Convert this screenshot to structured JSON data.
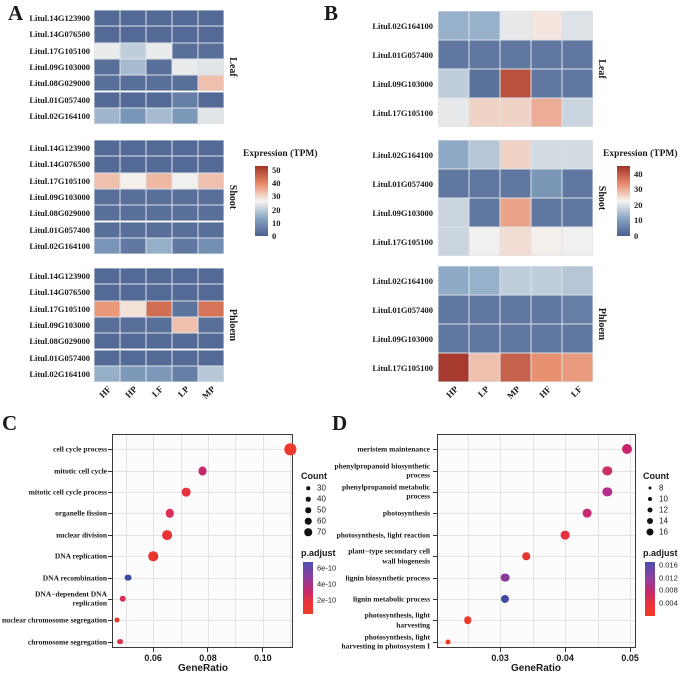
{
  "figure": {
    "background": "#ffffff",
    "heat_palette": [
      "#4a5f8e",
      "#87a5c3",
      "#f6f4f1",
      "#e78a68",
      "#a03229"
    ],
    "padjust_gradient": [
      "#4b4fb0",
      "#8f3f9f",
      "#c22a6c",
      "#e8333c",
      "#ee3a26"
    ]
  },
  "chart_data": [
    {
      "type": "heatmap",
      "panel_label": "A",
      "columns": [
        "HF",
        "HP",
        "LF",
        "LP",
        "MP"
      ],
      "genes": [
        "Litul.14G123900",
        "Litul.14G076500",
        "Litul.17G105100",
        "Litul.09G103000",
        "Litul.08G029000",
        "Litul.01G057400",
        "Litul.02G164100"
      ],
      "blocks": [
        {
          "name": "Leaf",
          "values": [
            [
              2,
              2,
              2,
              2,
              2
            ],
            [
              2,
              2,
              2,
              2,
              2
            ],
            [
              25,
              20,
              25,
              3,
              3
            ],
            [
              3,
              17,
              3,
              25,
              24
            ],
            [
              3,
              3,
              3,
              3,
              33
            ],
            [
              2,
              2,
              2,
              6,
              2
            ],
            [
              16,
              10,
              17,
              11,
              24
            ]
          ]
        },
        {
          "name": "Shoot",
          "values": [
            [
              2,
              2,
              2,
              2,
              2
            ],
            [
              2,
              2,
              2,
              2,
              2
            ],
            [
              33,
              27,
              34,
              26,
              33
            ],
            [
              3,
              3,
              3,
              3,
              3
            ],
            [
              3,
              3,
              3,
              3,
              3
            ],
            [
              3,
              3,
              3,
              3,
              3
            ],
            [
              10,
              5,
              15,
              5,
              9
            ]
          ]
        },
        {
          "name": "Phloem",
          "values": [
            [
              2,
              2,
              2,
              2,
              2
            ],
            [
              2,
              2,
              2,
              2,
              2
            ],
            [
              38,
              29,
              44,
              4,
              43
            ],
            [
              3,
              3,
              3,
              33,
              3
            ],
            [
              2,
              2,
              2,
              2,
              2
            ],
            [
              2,
              2,
              2,
              2,
              2
            ],
            [
              15,
              11,
              11,
              6,
              19
            ]
          ]
        }
      ],
      "scale_max": 53,
      "legend": {
        "title": "Expression (TPM)",
        "ticks": [
          50,
          40,
          30,
          20,
          10,
          0
        ]
      }
    },
    {
      "type": "heatmap",
      "panel_label": "B",
      "columns": [
        "HP",
        "LP",
        "MP",
        "HF",
        "LF"
      ],
      "genes": [
        "Litul.02G164100",
        "Litul.01G057400",
        "Litul.09G103000",
        "Litul.17G105100"
      ],
      "blocks": [
        {
          "name": "Leaf",
          "values": [
            [
              13,
              13,
              21,
              24,
              20
            ],
            [
              4,
              4,
              4,
              4,
              4
            ],
            [
              17,
              3,
              41,
              4,
              4
            ],
            [
              21,
              26,
              26,
              30,
              18
            ]
          ]
        },
        {
          "name": "Shoot",
          "values": [
            [
              12,
              16,
              26,
              19,
              19
            ],
            [
              4,
              4,
              4,
              9,
              4
            ],
            [
              18,
              4,
              31,
              4,
              4
            ],
            [
              18,
              22,
              25,
              23,
              22
            ]
          ]
        },
        {
          "name": "Phloem",
          "values": [
            [
              12,
              13,
              17,
              17,
              16
            ],
            [
              4,
              4,
              4,
              4,
              5
            ],
            [
              4,
              4,
              4,
              4,
              4
            ],
            [
              44,
              28,
              39,
              33,
              32
            ]
          ]
        }
      ],
      "scale_max": 45,
      "legend": {
        "title": "Expression (TPM)",
        "ticks": [
          40,
          30,
          20,
          10,
          0
        ]
      }
    },
    {
      "type": "scatter",
      "panel_label": "C",
      "xlabel": "GeneRatio",
      "x_ticks": [
        0.06,
        0.08,
        0.1
      ],
      "x_domain": [
        0.045,
        0.111
      ],
      "count_domain": [
        30,
        70
      ],
      "count_legend": {
        "title": "Count",
        "items": [
          30,
          40,
          50,
          60,
          70
        ]
      },
      "padjust_legend": {
        "title": "p.adjust",
        "labels": [
          "6e-10",
          "4e-10",
          "2e-10"
        ]
      },
      "points": [
        {
          "term": "cell cycle process",
          "ratio": 0.11,
          "count": 72,
          "color": "#ee3a2d"
        },
        {
          "term": "mitotic cell cycle",
          "ratio": 0.078,
          "count": 56,
          "color": "#c22a6c"
        },
        {
          "term": "mitotic cell cycle process",
          "ratio": 0.072,
          "count": 55,
          "color": "#e73340"
        },
        {
          "term": "organelle fission",
          "ratio": 0.066,
          "count": 53,
          "color": "#d92f56"
        },
        {
          "term": "nuclear division",
          "ratio": 0.065,
          "count": 62,
          "color": "#ea3335"
        },
        {
          "term": "DNA replication",
          "ratio": 0.06,
          "count": 60,
          "color": "#e6342c"
        },
        {
          "term": "DNA recombination",
          "ratio": 0.051,
          "count": 42,
          "color": "#3a4ba0"
        },
        {
          "term": "DNA−dependent DNA replication",
          "ratio": 0.049,
          "count": 40,
          "color": "#d62f56"
        },
        {
          "term": "nuclear chromosome segregation",
          "ratio": 0.047,
          "count": 30,
          "color": "#e6342c"
        },
        {
          "term": "chromosome segregation",
          "ratio": 0.048,
          "count": 35,
          "color": "#d8304c"
        }
      ]
    },
    {
      "type": "scatter",
      "panel_label": "D",
      "xlabel": "GeneRatio",
      "x_ticks": [
        0.03,
        0.04,
        0.05
      ],
      "x_domain": [
        0.0203,
        0.0509
      ],
      "count_domain": [
        8,
        16
      ],
      "count_legend": {
        "title": "Count",
        "items": [
          8,
          10,
          12,
          14,
          16
        ]
      },
      "padjust_legend": {
        "title": "p.adjust",
        "labels": [
          "0.016",
          "0.012",
          "0.008",
          "0.004"
        ]
      },
      "points": [
        {
          "term": "meristem maintenance",
          "ratio": 0.0495,
          "count": 16,
          "color": "#c9246d"
        },
        {
          "term": "phenylpropanoid biosynthetic\nprocess",
          "ratio": 0.0465,
          "count": 15,
          "color": "#c92f63"
        },
        {
          "term": "phenylpropanoid metabolic\nprocess",
          "ratio": 0.0465,
          "count": 15,
          "color": "#b62e8c"
        },
        {
          "term": "photosynthesis",
          "ratio": 0.0434,
          "count": 14,
          "color": "#c52a70"
        },
        {
          "term": "photosynthesis, light reaction",
          "ratio": 0.04,
          "count": 14,
          "color": "#e8303e"
        },
        {
          "term": "plant−type secondary cell\nwall biogenesis",
          "ratio": 0.034,
          "count": 12,
          "color": "#e7342f"
        },
        {
          "term": "lignin biosynthetic process",
          "ratio": 0.0308,
          "count": 14,
          "color": "#8a3a9b"
        },
        {
          "term": "lignin metabolic process",
          "ratio": 0.0308,
          "count": 13,
          "color": "#41479e"
        },
        {
          "term": "photosynthesis, light\nharvesting",
          "ratio": 0.025,
          "count": 12,
          "color": "#ec392b"
        },
        {
          "term": "photosynthesis, light\nharvesting in photosystem I",
          "ratio": 0.022,
          "count": 8,
          "color": "#ec392b"
        }
      ]
    }
  ]
}
